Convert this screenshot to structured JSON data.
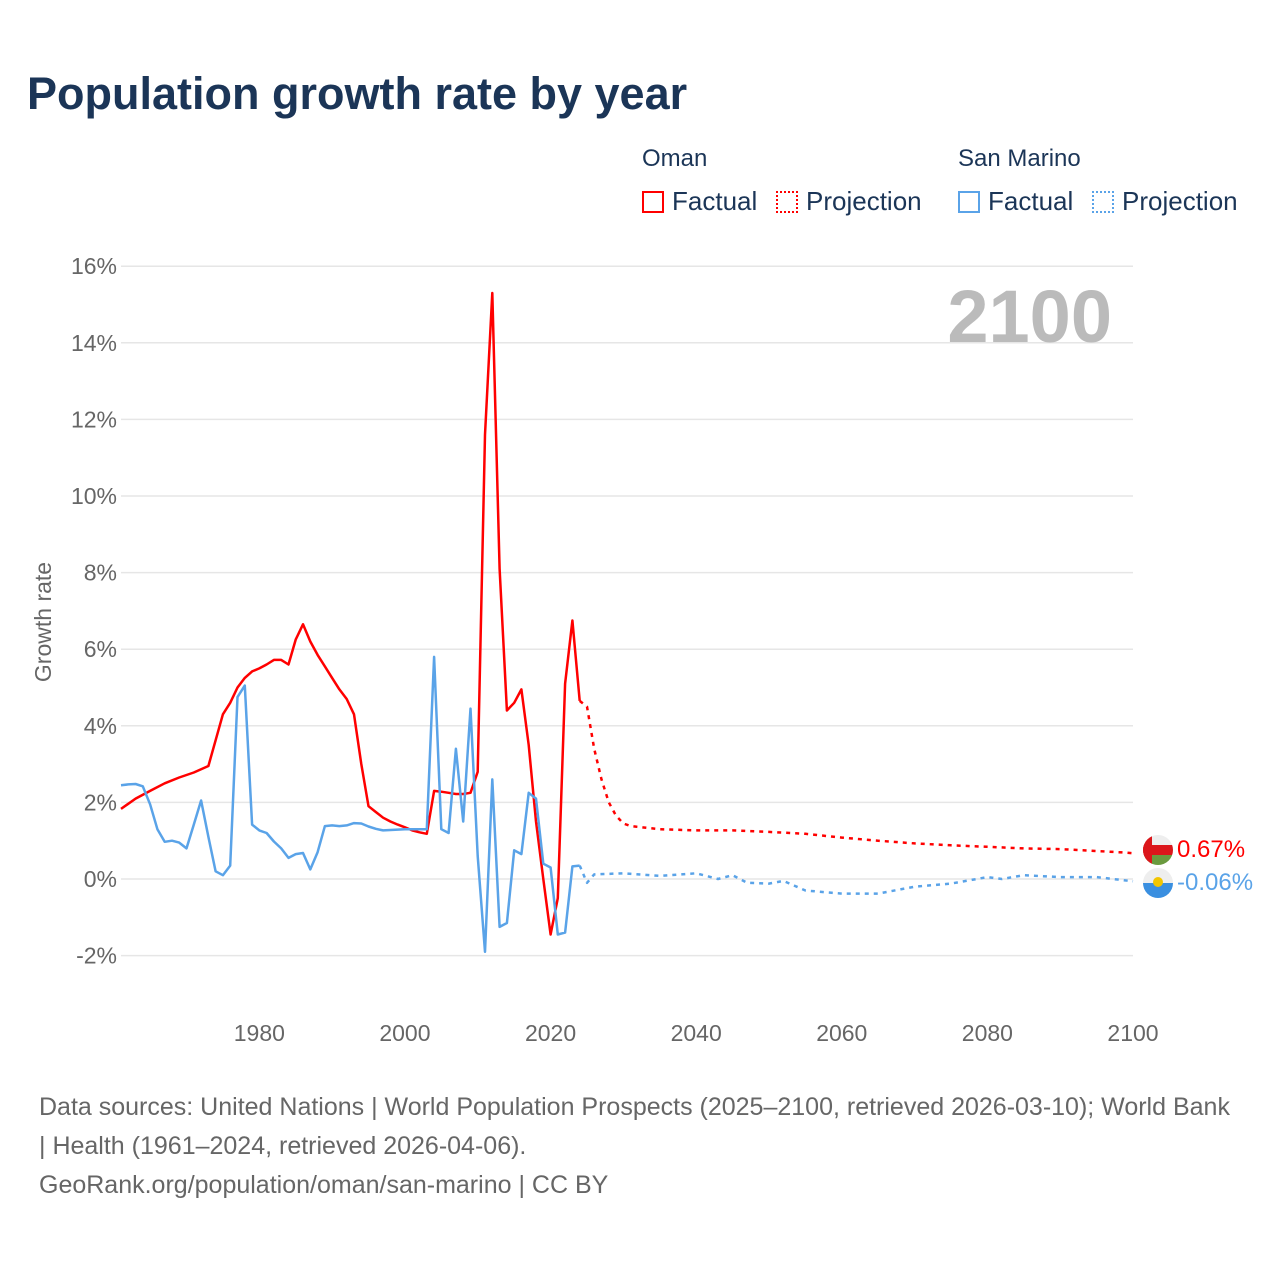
{
  "title": "Population growth rate by year",
  "legend": {
    "groups": [
      {
        "name": "Oman",
        "factual": "Factual",
        "projection": "Projection",
        "color": "#ff0000"
      },
      {
        "name": "San Marino",
        "factual": "Factual",
        "projection": "Projection",
        "color": "#5aa3e8"
      }
    ]
  },
  "year_label": "2100",
  "end_labels": [
    "0.67%",
    "-0.06%"
  ],
  "source": {
    "line1": "Data sources: United Nations | World Population Prospects (2025–2100, retrieved 2026-03-10); World Bank | Health (1961–2024, retrieved 2026-04-06).",
    "line2": "GeoRank.org/population/oman/san-marino | CC BY"
  },
  "chart_data": {
    "type": "line",
    "title": "Population growth rate by year",
    "xlabel": "",
    "ylabel": "Growth rate",
    "xlim": [
      1961,
      2100
    ],
    "ylim": [
      -2,
      16
    ],
    "xticks": [
      1980,
      2000,
      2020,
      2040,
      2060,
      2080,
      2100
    ],
    "yticks": [
      -2,
      0,
      2,
      4,
      6,
      8,
      10,
      12,
      14,
      16
    ],
    "ytick_labels": [
      "-2%",
      "0%",
      "2%",
      "4%",
      "6%",
      "8%",
      "10%",
      "12%",
      "14%",
      "16%"
    ],
    "grid": true,
    "legend_position": "top-right",
    "series": [
      {
        "name": "Oman Factual",
        "color": "#ff0000",
        "dashed": false,
        "x": [
          1961,
          1963,
          1965,
          1967,
          1969,
          1971,
          1973,
          1975,
          1976,
          1977,
          1978,
          1979,
          1980,
          1981,
          1982,
          1983,
          1984,
          1985,
          1986,
          1987,
          1988,
          1989,
          1990,
          1991,
          1992,
          1993,
          1994,
          1995,
          1996,
          1997,
          1998,
          1999,
          2000,
          2001,
          2002,
          2003,
          2004,
          2005,
          2006,
          2007,
          2008,
          2009,
          2010,
          2011,
          2012,
          2013,
          2014,
          2015,
          2016,
          2017,
          2018,
          2019,
          2020,
          2021,
          2022,
          2023,
          2024
        ],
        "y": [
          1.83,
          2.1,
          2.3,
          2.5,
          2.65,
          2.78,
          2.95,
          4.3,
          4.6,
          5.0,
          5.25,
          5.42,
          5.5,
          5.6,
          5.72,
          5.72,
          5.6,
          6.25,
          6.65,
          6.2,
          5.85,
          5.55,
          5.25,
          4.95,
          4.7,
          4.3,
          3.0,
          1.9,
          1.75,
          1.6,
          1.5,
          1.42,
          1.35,
          1.27,
          1.22,
          1.18,
          2.3,
          2.28,
          2.25,
          2.22,
          2.22,
          2.25,
          2.8,
          11.6,
          15.3,
          8.1,
          4.4,
          4.6,
          4.95,
          3.5,
          1.5,
          0.0,
          -1.45,
          -0.5,
          5.1,
          6.75,
          4.65
        ]
      },
      {
        "name": "Oman Projection",
        "color": "#ff0000",
        "dashed": true,
        "x": [
          2024,
          2025,
          2026,
          2027,
          2028,
          2029,
          2030,
          2031,
          2035,
          2040,
          2045,
          2050,
          2055,
          2060,
          2065,
          2070,
          2075,
          2080,
          2085,
          2090,
          2095,
          2099,
          2100
        ],
        "y": [
          4.65,
          4.5,
          3.4,
          2.6,
          2.0,
          1.65,
          1.45,
          1.38,
          1.3,
          1.27,
          1.27,
          1.23,
          1.18,
          1.08,
          1.0,
          0.93,
          0.88,
          0.84,
          0.8,
          0.78,
          0.73,
          0.69,
          0.67
        ]
      },
      {
        "name": "San Marino Factual",
        "color": "#5aa3e8",
        "dashed": false,
        "x": [
          1961,
          1962,
          1963,
          1964,
          1965,
          1966,
          1967,
          1968,
          1969,
          1970,
          1971,
          1972,
          1973,
          1974,
          1975,
          1976,
          1977,
          1978,
          1979,
          1980,
          1981,
          1982,
          1983,
          1984,
          1985,
          1986,
          1987,
          1988,
          1989,
          1990,
          1991,
          1992,
          1993,
          1994,
          1995,
          1996,
          1997,
          1998,
          1999,
          2000,
          2001,
          2002,
          2003,
          2004,
          2005,
          2006,
          2007,
          2008,
          2009,
          2010,
          2011,
          2012,
          2013,
          2014,
          2015,
          2016,
          2017,
          2018,
          2019,
          2020,
          2021,
          2022,
          2023,
          2024
        ],
        "y": [
          2.45,
          2.47,
          2.48,
          2.42,
          1.95,
          1.3,
          0.97,
          1.0,
          0.95,
          0.8,
          1.42,
          2.05,
          1.1,
          0.2,
          0.1,
          0.35,
          4.75,
          5.05,
          1.42,
          1.27,
          1.2,
          0.98,
          0.8,
          0.55,
          0.65,
          0.68,
          0.25,
          0.7,
          1.38,
          1.4,
          1.38,
          1.4,
          1.46,
          1.45,
          1.37,
          1.31,
          1.27,
          1.28,
          1.29,
          1.3,
          1.3,
          1.3,
          1.3,
          5.8,
          1.3,
          1.2,
          3.4,
          1.5,
          4.45,
          0.6,
          -1.9,
          2.6,
          -1.25,
          -1.15,
          0.75,
          0.65,
          2.25,
          2.1,
          0.4,
          0.3,
          -1.45,
          -1.4,
          0.33,
          0.35
        ]
      },
      {
        "name": "San Marino Projection",
        "color": "#5aa3e8",
        "dashed": true,
        "x": [
          2024,
          2025,
          2026,
          2030,
          2035,
          2040,
          2043,
          2045,
          2047,
          2050,
          2052,
          2055,
          2060,
          2065,
          2070,
          2075,
          2080,
          2082,
          2085,
          2090,
          2095,
          2100
        ],
        "y": [
          0.35,
          -0.1,
          0.12,
          0.15,
          0.08,
          0.15,
          0.0,
          0.1,
          -0.1,
          -0.12,
          -0.05,
          -0.3,
          -0.38,
          -0.38,
          -0.2,
          -0.12,
          0.05,
          0.0,
          0.1,
          0.05,
          0.05,
          -0.06
        ]
      }
    ]
  }
}
